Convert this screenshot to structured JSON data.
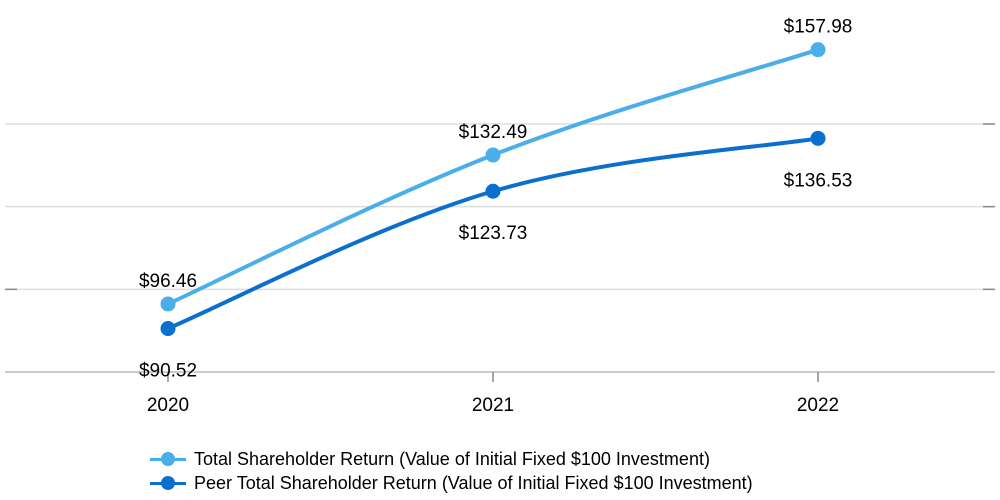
{
  "chart_data": {
    "type": "line",
    "title": "",
    "xlabel": "",
    "ylabel": "",
    "categories": [
      "2020",
      "2021",
      "2022"
    ],
    "ylim": [
      80,
      170
    ],
    "grid": true,
    "legend_position": "bottom",
    "series": [
      {
        "name": "Total Shareholder Return (Value of Initial Fixed $100 Investment)",
        "values": [
          96.46,
          132.49,
          157.98
        ],
        "labels": [
          "$96.46",
          "$132.49",
          "$157.98"
        ],
        "color": "#4aaeea",
        "label_position": "above"
      },
      {
        "name": "Peer Total Shareholder Return (Value of Initial Fixed $100 Investment)",
        "values": [
          90.52,
          123.73,
          136.53
        ],
        "labels": [
          "$90.52",
          "$123.73",
          "$136.53"
        ],
        "color": "#0b6fce",
        "label_position": "below"
      }
    ]
  }
}
